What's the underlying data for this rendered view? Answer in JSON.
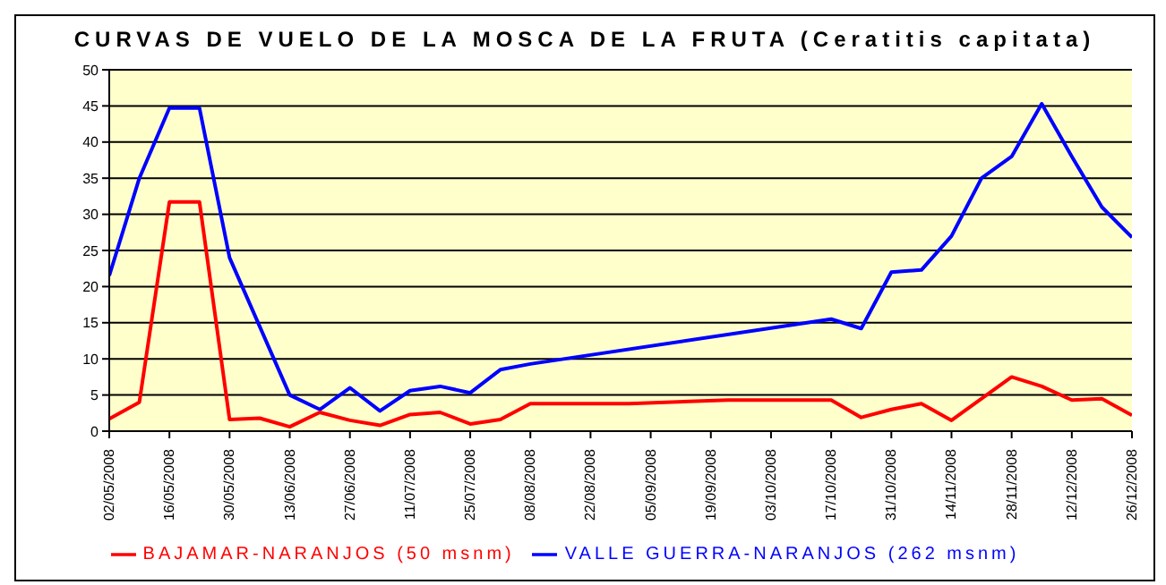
{
  "chart_data": {
    "type": "line",
    "title": "CURVAS DE VUELO DE LA MOSCA DE LA FRUTA (Ceratitis capitata)",
    "series": [
      {
        "name": "VALLE GUERRA-NARANJOS (262 msnm)",
        "color": "#0000ff",
        "x": [
          "2008-05-02",
          "2008-05-09",
          "2008-05-16",
          "2008-05-23",
          "2008-05-30",
          "2008-06-06",
          "2008-06-13",
          "2008-06-20",
          "2008-06-27",
          "2008-07-04",
          "2008-07-11",
          "2008-07-18",
          "2008-07-25",
          "2008-08-01",
          "2008-08-08",
          "2008-10-17",
          "2008-10-24",
          "2008-10-31",
          "2008-11-07",
          "2008-11-14",
          "2008-11-21",
          "2008-11-28",
          "2008-12-05",
          "2008-12-12",
          "2008-12-19",
          "2008-12-26"
        ],
        "values": [
          21.5,
          35,
          44.7,
          44.7,
          24,
          14.5,
          5,
          3,
          6,
          2.8,
          5.6,
          6.2,
          5.3,
          8.5,
          9.3,
          15.5,
          14.2,
          22,
          22.3,
          27,
          35,
          38,
          45.3,
          38,
          31,
          26.8
        ]
      },
      {
        "name": "BAJAMAR-NARANJOS (50 msnm)",
        "color": "#ff0000",
        "x": [
          "2008-05-02",
          "2008-05-09",
          "2008-05-16",
          "2008-05-23",
          "2008-05-30",
          "2008-06-06",
          "2008-06-13",
          "2008-06-20",
          "2008-06-27",
          "2008-07-04",
          "2008-07-11",
          "2008-07-18",
          "2008-07-25",
          "2008-08-01",
          "2008-08-08",
          "2008-08-31",
          "2008-09-23",
          "2008-10-17",
          "2008-10-24",
          "2008-10-31",
          "2008-11-07",
          "2008-11-14",
          "2008-11-28",
          "2008-12-05",
          "2008-12-12",
          "2008-12-19",
          "2008-12-26"
        ],
        "values": [
          1.7,
          4,
          31.7,
          31.7,
          1.6,
          1.8,
          0.6,
          2.6,
          1.5,
          0.8,
          2.3,
          2.6,
          1,
          1.6,
          3.8,
          3.8,
          4.3,
          4.3,
          1.9,
          3,
          3.8,
          1.5,
          7.5,
          6.2,
          4.3,
          4.5,
          2.2
        ]
      }
    ],
    "xlim": [
      "2008-05-02",
      "2008-12-26"
    ],
    "xticks": [
      {
        "value": "2008-05-02",
        "label": "02/05/2008"
      },
      {
        "value": "2008-05-16",
        "label": "16/05/2008"
      },
      {
        "value": "2008-05-30",
        "label": "30/05/2008"
      },
      {
        "value": "2008-06-13",
        "label": "13/06/2008"
      },
      {
        "value": "2008-06-27",
        "label": "27/06/2008"
      },
      {
        "value": "2008-07-11",
        "label": "11/07/2008"
      },
      {
        "value": "2008-07-25",
        "label": "25/07/2008"
      },
      {
        "value": "2008-08-08",
        "label": "08/08/2008"
      },
      {
        "value": "2008-08-22",
        "label": "22/08/2008"
      },
      {
        "value": "2008-09-05",
        "label": "05/09/2008"
      },
      {
        "value": "2008-09-19",
        "label": "19/09/2008"
      },
      {
        "value": "2008-10-03",
        "label": "03/10/2008"
      },
      {
        "value": "2008-10-17",
        "label": "17/10/2008"
      },
      {
        "value": "2008-10-31",
        "label": "31/10/2008"
      },
      {
        "value": "2008-11-14",
        "label": "14/11/2008"
      },
      {
        "value": "2008-11-28",
        "label": "28/11/2008"
      },
      {
        "value": "2008-12-12",
        "label": "12/12/2008"
      },
      {
        "value": "2008-12-26",
        "label": "26/12/2008"
      }
    ],
    "ylim": [
      0,
      50
    ],
    "yticks": [
      0,
      5,
      10,
      15,
      20,
      25,
      30,
      35,
      40,
      45,
      50
    ],
    "grid": "y",
    "legend": "bottom",
    "marker": "none",
    "line_style": "solid"
  }
}
